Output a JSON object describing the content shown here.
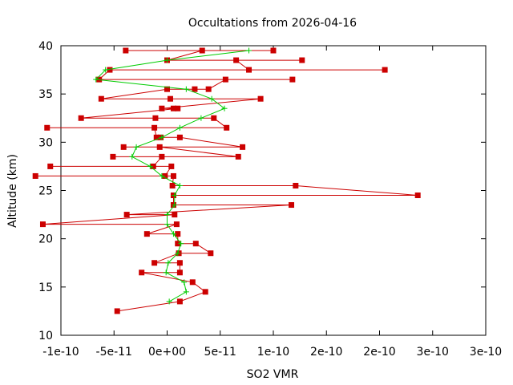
{
  "chart_data": {
    "type": "line",
    "title": "Occultations from 2026-04-16",
    "xlabel": "SO2 VMR",
    "ylabel": "Altitude (km)",
    "xlim": [
      -1e-10,
      3e-10
    ],
    "ylim": [
      10,
      40
    ],
    "x_ticks": [
      {
        "value": -1e-10,
        "label": "-1e-10"
      },
      {
        "value": -5e-11,
        "label": "-5e-11"
      },
      {
        "value": 0,
        "label": "0e+00"
      },
      {
        "value": 5e-11,
        "label": "5e-11"
      },
      {
        "value": 1e-10,
        "label": "1e-10"
      },
      {
        "value": 1.5e-10,
        "label": "2e-10"
      },
      {
        "value": 2e-10,
        "label": "2e-10"
      },
      {
        "value": 2.5e-10,
        "label": "3e-10"
      },
      {
        "value": 3e-10,
        "label": "3e-10"
      }
    ],
    "y_ticks": [
      {
        "value": 10,
        "label": "10"
      },
      {
        "value": 15,
        "label": "15"
      },
      {
        "value": 20,
        "label": "20"
      },
      {
        "value": 25,
        "label": "25"
      },
      {
        "value": 30,
        "label": "30"
      },
      {
        "value": 35,
        "label": "35"
      },
      {
        "value": 40,
        "label": "40"
      }
    ],
    "grid": false,
    "legend": "none",
    "series": [
      {
        "color": "#cc0000",
        "marker": "square",
        "points": [
          {
            "x": -4.7e-11,
            "y": 12.5
          },
          {
            "x": 1.2e-11,
            "y": 13.5
          },
          {
            "x": 3.6e-11,
            "y": 14.5
          },
          {
            "x": 2.4e-11,
            "y": 15.5
          },
          {
            "x": -2.4e-11,
            "y": 16.5
          },
          {
            "x": 1.2e-11,
            "y": 16.5
          },
          {
            "x": 1.2e-11,
            "y": 17.5
          },
          {
            "x": -1.2e-11,
            "y": 17.5
          },
          {
            "x": 1.1e-11,
            "y": 18.5
          },
          {
            "x": 4.1e-11,
            "y": 18.5
          },
          {
            "x": 2.7e-11,
            "y": 19.5
          },
          {
            "x": 1e-11,
            "y": 19.5
          },
          {
            "x": 1e-11,
            "y": 20.5
          },
          {
            "x": -1.9e-11,
            "y": 20.5
          },
          {
            "x": 9e-12,
            "y": 21.5
          },
          {
            "x": -1.17e-10,
            "y": 21.5
          },
          {
            "x": 7e-12,
            "y": 22.5
          },
          {
            "x": -3.8e-11,
            "y": 22.5
          },
          {
            "x": 1.17e-10,
            "y": 23.5
          },
          {
            "x": 6e-12,
            "y": 23.5
          },
          {
            "x": 6e-12,
            "y": 24.5
          },
          {
            "x": 2.36e-10,
            "y": 24.5
          },
          {
            "x": 1.21e-10,
            "y": 25.5
          },
          {
            "x": 5e-12,
            "y": 25.5
          },
          {
            "x": 6e-12,
            "y": 26.5
          },
          {
            "x": -1.24e-10,
            "y": 26.5
          },
          {
            "x": -2e-12,
            "y": 26.5
          },
          {
            "x": 4e-12,
            "y": 27.5
          },
          {
            "x": -1.1e-10,
            "y": 27.5
          },
          {
            "x": -1.3e-11,
            "y": 27.5
          },
          {
            "x": -5e-12,
            "y": 28.5
          },
          {
            "x": -5.1e-11,
            "y": 28.5
          },
          {
            "x": 6.7e-11,
            "y": 28.5
          },
          {
            "x": -7e-12,
            "y": 29.5
          },
          {
            "x": -4.1e-11,
            "y": 29.5
          },
          {
            "x": 7.1e-11,
            "y": 29.5
          },
          {
            "x": 1.2e-11,
            "y": 30.5
          },
          {
            "x": -6e-12,
            "y": 30.5
          },
          {
            "x": -1e-11,
            "y": 30.5
          },
          {
            "x": -1.2e-11,
            "y": 31.5
          },
          {
            "x": -1.13e-10,
            "y": 31.5
          },
          {
            "x": 5.6e-11,
            "y": 31.5
          },
          {
            "x": 4.4e-11,
            "y": 32.5
          },
          {
            "x": -1.1e-11,
            "y": 32.5
          },
          {
            "x": -8.1e-11,
            "y": 32.5
          },
          {
            "x": 1e-11,
            "y": 33.5
          },
          {
            "x": 6e-12,
            "y": 33.5
          },
          {
            "x": -5e-12,
            "y": 33.5
          },
          {
            "x": 8.8e-11,
            "y": 34.5
          },
          {
            "x": 3e-12,
            "y": 34.5
          },
          {
            "x": -6.2e-11,
            "y": 34.5
          },
          {
            "x": 0,
            "y": 35.5
          },
          {
            "x": 2.6e-11,
            "y": 35.5
          },
          {
            "x": 3.9e-11,
            "y": 35.5
          },
          {
            "x": 5.5e-11,
            "y": 36.5
          },
          {
            "x": 1.18e-10,
            "y": 36.5
          },
          {
            "x": -6.4e-11,
            "y": 36.5
          },
          {
            "x": -5.4e-11,
            "y": 37.5
          },
          {
            "x": 2.05e-10,
            "y": 37.5
          },
          {
            "x": 7.7e-11,
            "y": 37.5
          },
          {
            "x": 6.5e-11,
            "y": 38.5
          },
          {
            "x": 1.27e-10,
            "y": 38.5
          },
          {
            "x": 0,
            "y": 38.5
          },
          {
            "x": 3.3e-11,
            "y": 39.5
          },
          {
            "x": 1e-10,
            "y": 39.5
          },
          {
            "x": -3.9e-11,
            "y": 39.5
          }
        ]
      },
      {
        "color": "#00cc00",
        "marker": "plus",
        "points": [
          {
            "x": 2e-12,
            "y": 13.5
          },
          {
            "x": 1.8e-11,
            "y": 14.5
          },
          {
            "x": 1.6e-11,
            "y": 15.5
          },
          {
            "x": -1e-12,
            "y": 16.5
          },
          {
            "x": 1e-12,
            "y": 17.5
          },
          {
            "x": 1e-11,
            "y": 18.5
          },
          {
            "x": 1.3e-11,
            "y": 19.5
          },
          {
            "x": 6e-12,
            "y": 20.5
          },
          {
            "x": 0,
            "y": 21.5
          },
          {
            "x": 0,
            "y": 22.5
          },
          {
            "x": 7e-12,
            "y": 23.5
          },
          {
            "x": 7e-12,
            "y": 24.5
          },
          {
            "x": 1.2e-11,
            "y": 25.5
          },
          {
            "x": -5e-12,
            "y": 26.5
          },
          {
            "x": -1.6e-11,
            "y": 27.5
          },
          {
            "x": -3.3e-11,
            "y": 28.5
          },
          {
            "x": -2.9e-11,
            "y": 29.5
          },
          {
            "x": -5e-12,
            "y": 30.5
          },
          {
            "x": 1.2e-11,
            "y": 31.5
          },
          {
            "x": 3.2e-11,
            "y": 32.5
          },
          {
            "x": 5.4e-11,
            "y": 33.5
          },
          {
            "x": 4.2e-11,
            "y": 34.5
          },
          {
            "x": 1.8e-11,
            "y": 35.5
          },
          {
            "x": -6.7e-11,
            "y": 36.5
          },
          {
            "x": -5.8e-11,
            "y": 37.5
          },
          {
            "x": 0,
            "y": 38.5
          },
          {
            "x": 7.7e-11,
            "y": 39.5
          }
        ]
      }
    ]
  }
}
